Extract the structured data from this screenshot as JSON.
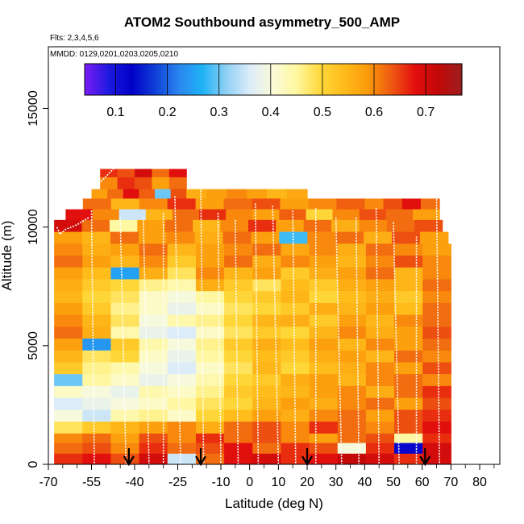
{
  "header": {
    "title": "ATOM2 Southbound asymmetry_500_AMP",
    "flights": "Flts: 2,3,4,5,6",
    "dates": "MMDD: 0129,0201,0203,0205,0210"
  },
  "colors": {
    "scale": [
      "#7a1cf5",
      "#1f1ae0",
      "#0000c6",
      "#1040d8",
      "#2b86ef",
      "#1fb3f5",
      "#8fd0f5",
      "#dcecf8",
      "#fafbd8",
      "#fff7a0",
      "#ffd83a",
      "#ffbb1a",
      "#fb9b0c",
      "#ef5a10",
      "#e30f0f",
      "#c10808",
      "#9c1f1f"
    ],
    "profile_line": "#ffffff",
    "arrow": "#000000"
  },
  "chart_data": {
    "type": "heatmap",
    "title": "ATOM2 Southbound asymmetry_500_AMP",
    "xlabel": "Latitude (deg N)",
    "ylabel": "Altitude (m)",
    "xlim": [
      -70,
      87
    ],
    "ylim": [
      0,
      17600
    ],
    "x_ticks": [
      "-70",
      "-55",
      "-40",
      "-25",
      "-10",
      "0",
      "10",
      "20",
      "30",
      "40",
      "50",
      "60",
      "70",
      "80"
    ],
    "x_tick_values": [
      -70,
      -55,
      -40,
      -25,
      -10,
      0,
      10,
      20,
      30,
      40,
      50,
      60,
      70,
      80
    ],
    "y_ticks": [
      "0",
      "5000",
      "10000",
      "15000"
    ],
    "y_tick_values": [
      0,
      5000,
      10000,
      15000
    ],
    "colorbar": {
      "range": [
        0.04,
        0.77
      ],
      "ticks": [
        "0.1",
        "0.2",
        "0.3",
        "0.4",
        "0.5",
        "0.6",
        "0.7"
      ],
      "tick_values": [
        0.1,
        0.2,
        0.3,
        0.4,
        0.5,
        0.6,
        0.7
      ]
    },
    "altitude_bands": [
      {
        "alt": [
          12100,
          12450
        ],
        "lat": [
          -52,
          -22
        ],
        "values": [
          0.66,
          0.64,
          0.7,
          0.62,
          0.68
        ]
      },
      {
        "alt": [
          11600,
          12100
        ],
        "lat": [
          -52,
          -22
        ],
        "values": [
          0.6,
          0.66,
          0.64,
          0.58,
          0.62
        ]
      },
      {
        "alt": [
          11200,
          11600
        ],
        "lat": [
          -55,
          -22
        ],
        "values": [
          0.58,
          0.62,
          0.68,
          0.63,
          0.3,
          0.64
        ]
      },
      {
        "alt": [
          11200,
          11600
        ],
        "lat": [
          -22,
          20
        ],
        "values": [
          0.56,
          0.58,
          0.6,
          0.58,
          0.55,
          0.57
        ]
      },
      {
        "alt": [
          10750,
          11200
        ],
        "lat": [
          -58,
          40
        ],
        "values": [
          0.62,
          0.55,
          0.6,
          0.66,
          0.58,
          0.62,
          0.64,
          0.58,
          0.6,
          0.63
        ]
      },
      {
        "alt": [
          10750,
          11200
        ],
        "lat": [
          40,
          66
        ],
        "values": [
          0.6,
          0.64,
          0.68,
          0.62
        ]
      },
      {
        "alt": [
          10300,
          10750
        ],
        "lat": [
          -64,
          66
        ],
        "values": [
          0.68,
          0.6,
          0.35,
          0.55,
          0.62,
          0.66,
          0.6,
          0.58,
          0.63,
          0.5,
          0.6,
          0.64,
          0.62,
          0.58
        ]
      },
      {
        "alt": [
          9800,
          10300
        ],
        "lat": [
          -68,
          67
        ],
        "values": [
          0.7,
          0.62,
          0.45,
          0.58,
          0.62,
          0.55,
          0.6,
          0.66,
          0.58,
          0.62,
          0.56,
          0.6,
          0.62,
          0.64
        ]
      },
      {
        "alt": [
          9300,
          9800
        ],
        "lat": [
          -68,
          69
        ],
        "values": [
          0.58,
          0.55,
          0.62,
          0.58,
          0.6,
          0.56,
          0.62,
          0.58,
          0.28,
          0.6,
          0.62,
          0.56,
          0.64,
          0.58
        ]
      },
      {
        "alt": [
          8800,
          9300
        ],
        "lat": [
          -68,
          70
        ],
        "values": [
          0.6,
          0.56,
          0.58,
          0.62,
          0.55,
          0.58,
          0.6,
          0.62,
          0.57,
          0.6,
          0.56,
          0.62,
          0.6,
          0.58
        ]
      },
      {
        "alt": [
          8300,
          8800
        ],
        "lat": [
          -68,
          70
        ],
        "values": [
          0.62,
          0.58,
          0.55,
          0.6,
          0.52,
          0.58,
          0.62,
          0.56,
          0.6,
          0.58,
          0.55,
          0.6,
          0.64,
          0.6
        ]
      },
      {
        "alt": [
          7800,
          8300
        ],
        "lat": [
          -68,
          70
        ],
        "values": [
          0.58,
          0.54,
          0.25,
          0.56,
          0.48,
          0.6,
          0.55,
          0.58,
          0.52,
          0.56,
          0.58,
          0.62,
          0.55,
          0.6
        ]
      },
      {
        "alt": [
          7300,
          7800
        ],
        "lat": [
          -68,
          70
        ],
        "values": [
          0.56,
          0.52,
          0.5,
          0.46,
          0.44,
          0.56,
          0.52,
          0.48,
          0.54,
          0.52,
          0.56,
          0.58,
          0.55,
          0.62
        ]
      },
      {
        "alt": [
          6800,
          7300
        ],
        "lat": [
          -68,
          70
        ],
        "values": [
          0.55,
          0.5,
          0.48,
          0.42,
          0.4,
          0.45,
          0.5,
          0.52,
          0.55,
          0.5,
          0.54,
          0.56,
          0.52,
          0.6
        ]
      },
      {
        "alt": [
          6300,
          6800
        ],
        "lat": [
          -68,
          70
        ],
        "values": [
          0.58,
          0.52,
          0.46,
          0.42,
          0.38,
          0.42,
          0.48,
          0.5,
          0.52,
          0.56,
          0.55,
          0.58,
          0.54,
          0.62
        ]
      },
      {
        "alt": [
          5800,
          6300
        ],
        "lat": [
          -68,
          70
        ],
        "values": [
          0.6,
          0.55,
          0.48,
          0.4,
          0.44,
          0.46,
          0.5,
          0.55,
          0.56,
          0.52,
          0.58,
          0.55,
          0.6,
          0.62
        ]
      },
      {
        "alt": [
          5300,
          5800
        ],
        "lat": [
          -68,
          70
        ],
        "values": [
          0.62,
          0.56,
          0.44,
          0.38,
          0.36,
          0.42,
          0.48,
          0.52,
          0.5,
          0.55,
          0.6,
          0.56,
          0.58,
          0.64
        ]
      },
      {
        "alt": [
          4800,
          5300
        ],
        "lat": [
          -68,
          70
        ],
        "values": [
          0.58,
          0.24,
          0.52,
          0.44,
          0.4,
          0.46,
          0.52,
          0.56,
          0.54,
          0.58,
          0.55,
          0.6,
          0.58,
          0.62
        ]
      },
      {
        "alt": [
          4300,
          4800
        ],
        "lat": [
          -68,
          70
        ],
        "values": [
          0.55,
          0.48,
          0.5,
          0.42,
          0.38,
          0.45,
          0.5,
          0.54,
          0.52,
          0.56,
          0.58,
          0.55,
          0.62,
          0.6
        ]
      },
      {
        "alt": [
          3800,
          4300
        ],
        "lat": [
          -68,
          70
        ],
        "values": [
          0.52,
          0.46,
          0.44,
          0.4,
          0.36,
          0.42,
          0.48,
          0.55,
          0.5,
          0.54,
          0.56,
          0.6,
          0.58,
          0.64
        ]
      },
      {
        "alt": [
          3300,
          3800
        ],
        "lat": [
          -68,
          70
        ],
        "values": [
          0.3,
          0.45,
          0.42,
          0.38,
          0.4,
          0.44,
          0.5,
          0.52,
          0.56,
          0.58,
          0.55,
          0.6,
          0.62,
          0.6
        ]
      },
      {
        "alt": [
          2800,
          3300
        ],
        "lat": [
          -68,
          70
        ],
        "values": [
          0.42,
          0.4,
          0.38,
          0.44,
          0.42,
          0.46,
          0.52,
          0.54,
          0.55,
          0.58,
          0.6,
          0.56,
          0.62,
          0.66
        ]
      },
      {
        "alt": [
          2300,
          2800
        ],
        "lat": [
          -68,
          70
        ],
        "values": [
          0.36,
          0.38,
          0.4,
          0.42,
          0.45,
          0.48,
          0.5,
          0.55,
          0.58,
          0.56,
          0.6,
          0.62,
          0.58,
          0.64
        ]
      },
      {
        "alt": [
          1800,
          2300
        ],
        "lat": [
          -68,
          70
        ],
        "values": [
          0.4,
          0.35,
          0.44,
          0.46,
          0.42,
          0.5,
          0.54,
          0.58,
          0.56,
          0.6,
          0.62,
          0.58,
          0.64,
          0.66
        ]
      },
      {
        "alt": [
          1300,
          1800
        ],
        "lat": [
          -68,
          70
        ],
        "values": [
          0.48,
          0.52,
          0.55,
          0.58,
          0.6,
          0.56,
          0.62,
          0.64,
          0.6,
          0.66,
          0.62,
          0.6,
          0.64,
          0.68
        ]
      },
      {
        "alt": [
          900,
          1300
        ],
        "lat": [
          -68,
          70
        ],
        "values": [
          0.6,
          0.62,
          0.58,
          0.64,
          0.6,
          0.66,
          0.62,
          0.64,
          0.6,
          0.58,
          0.62,
          0.64,
          0.45,
          0.66
        ]
      },
      {
        "alt": [
          450,
          900
        ],
        "lat": [
          -68,
          70
        ],
        "values": [
          0.62,
          0.64,
          0.6,
          0.66,
          0.62,
          0.64,
          0.68,
          0.62,
          0.66,
          0.64,
          0.4,
          0.66,
          0.12,
          0.7
        ]
      },
      {
        "alt": [
          0,
          450
        ],
        "lat": [
          -68,
          70
        ],
        "values": [
          0.66,
          0.68,
          0.64,
          0.7,
          0.35,
          0.62,
          0.68,
          0.7,
          0.66,
          0.68,
          0.72,
          0.7,
          0.66,
          0.7
        ]
      }
    ],
    "flight_profiles": [
      {
        "points": [
          [
            -67,
            10000
          ],
          [
            -66,
            9700
          ],
          [
            -64,
            9900
          ],
          [
            -60,
            10100
          ],
          [
            -56,
            10400
          ]
        ]
      },
      {
        "points": [
          [
            -54,
            11700
          ],
          [
            -51,
            12000
          ],
          [
            -47,
            12500
          ]
        ]
      },
      {
        "points": [
          [
            -55,
            10700
          ],
          [
            -54,
            0
          ]
        ]
      },
      {
        "points": [
          [
            -45,
            10400
          ],
          [
            -43,
            0
          ]
        ]
      },
      {
        "points": [
          [
            -37,
            10400
          ],
          [
            -35,
            0
          ]
        ]
      },
      {
        "points": [
          [
            -30,
            10600
          ],
          [
            -30,
            0
          ]
        ]
      },
      {
        "points": [
          [
            -26,
            11300
          ],
          [
            -24,
            0
          ]
        ]
      },
      {
        "points": [
          [
            -17,
            11800
          ],
          [
            -16,
            0
          ]
        ]
      },
      {
        "points": [
          [
            -11,
            10600
          ],
          [
            -10,
            0
          ]
        ]
      },
      {
        "points": [
          [
            -5,
            10300
          ],
          [
            -4,
            0
          ]
        ]
      },
      {
        "points": [
          [
            2,
            11000
          ],
          [
            3,
            0
          ]
        ]
      },
      {
        "points": [
          [
            8,
            10900
          ],
          [
            10,
            0
          ]
        ]
      },
      {
        "points": [
          [
            15,
            10700
          ],
          [
            16,
            0
          ]
        ]
      },
      {
        "points": [
          [
            23,
            10800
          ],
          [
            23,
            0
          ]
        ]
      },
      {
        "points": [
          [
            30,
            10400
          ],
          [
            32,
            0
          ]
        ]
      },
      {
        "points": [
          [
            37,
            10400
          ],
          [
            38,
            0
          ]
        ]
      },
      {
        "points": [
          [
            44,
            10800
          ],
          [
            45,
            0
          ]
        ]
      },
      {
        "points": [
          [
            50,
            10200
          ],
          [
            52,
            0
          ]
        ]
      },
      {
        "points": [
          [
            58,
            9600
          ],
          [
            58,
            0
          ]
        ]
      },
      {
        "points": [
          [
            65,
            11300
          ],
          [
            66,
            0
          ]
        ]
      },
      {
        "points": [
          [
            66,
            11300
          ],
          [
            70,
            11200
          ]
        ]
      }
    ],
    "arrows_at_lat": [
      -42,
      -17,
      20,
      61
    ]
  }
}
